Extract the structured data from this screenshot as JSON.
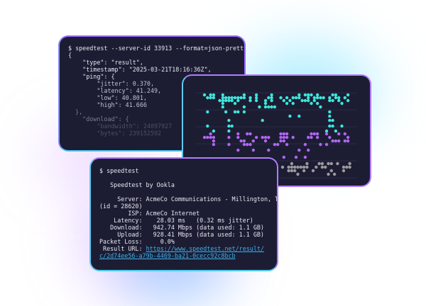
{
  "json_terminal": {
    "command": "$ speedtest --server-id 33913 --format=json-pretty",
    "lines": [
      "{",
      "    \"type\": \"result\",",
      "    \"timestamp\": \"2025-03-21T18:16:36Z\",",
      "    \"ping\": {",
      "        \"jitter\": 0.370,",
      "        \"latency\": 41.249,",
      "        \"low\": 40.801,",
      "        \"high\": 41.666",
      "  },",
      "    \"download\": {",
      "        \"bandwidth\": 24097927",
      "        \"bytes\": 239152592"
    ]
  },
  "dot_panel": {
    "colors": {
      "top": "#3ee6dc",
      "middle": "#b066f0",
      "bottom": "#9a9a9e",
      "grid": "#2a2b45"
    }
  },
  "cli_terminal": {
    "command": "$ speedtest",
    "title": "   Speedtest by Ookla",
    "lines": [
      "     Server: AcmeCo Communications - Millington, TN",
      "(id = 28620)",
      "        ISP: AcmeCo Internet",
      "    Latency:    28.03 ms   (0.32 ms jitter)",
      "   Download:   942.74 Mbps (data used: 1.1 GB)",
      "     Upload:   928.41 Mbps (data used: 1.1 GB)",
      "Packet Loss:     0.0%"
    ],
    "result_label": " Result URL: ",
    "result_url_1": "https://www.speedtest.net/result/",
    "result_url_2": "c/2d74ee56-a79b-4469-ba21-0cecc92c8bcb"
  }
}
